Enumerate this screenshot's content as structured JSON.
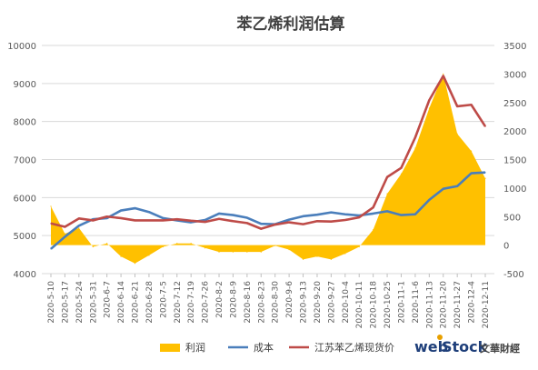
{
  "chart_data": {
    "type": "line",
    "title": "苯乙烯利润估算",
    "x": [
      "2020-5-10",
      "2020-5-17",
      "2020-5-24",
      "2020-5-31",
      "2020-6-7",
      "2020-6-14",
      "2020-6-21",
      "2020-6-28",
      "2020-7-5",
      "2020-7-12",
      "2020-7-19",
      "2020-7-26",
      "2020-8-2",
      "2020-8-9",
      "2020-8-16",
      "2020-8-23",
      "2020-8-30",
      "2020-9-6",
      "2020-9-13",
      "2020-9-20",
      "2020-9-27",
      "2020-10-4",
      "2020-10-11",
      "2020-10-18",
      "2020-10-25",
      "2020-11-1",
      "2020-11-6",
      "2020-11-13",
      "2020-11-20",
      "2020-11-27",
      "2020-12-4",
      "2020-12-11"
    ],
    "left_axis": {
      "ylim": [
        4000,
        10000
      ],
      "ticks": [
        4000,
        5000,
        6000,
        7000,
        8000,
        9000,
        10000
      ]
    },
    "right_axis": {
      "ylim": [
        -500,
        3500
      ],
      "ticks": [
        -500,
        0,
        500,
        1000,
        1500,
        2000,
        2500,
        3000,
        3500
      ]
    },
    "series": [
      {
        "name": "利润",
        "kind": "area",
        "axis": "right",
        "color": "#FFC000",
        "values": [
          680,
          200,
          300,
          -30,
          30,
          -200,
          -320,
          -180,
          -30,
          30,
          30,
          -50,
          -120,
          -120,
          -120,
          -120,
          -10,
          -80,
          -250,
          -200,
          -250,
          -150,
          -30,
          270,
          900,
          1250,
          1700,
          2400,
          3000,
          1950,
          1650,
          1170
        ]
      },
      {
        "name": "成本",
        "kind": "line",
        "axis": "left",
        "color": "#4A7EBB",
        "values": [
          4650,
          4970,
          5260,
          5430,
          5460,
          5660,
          5720,
          5620,
          5460,
          5400,
          5350,
          5410,
          5580,
          5540,
          5470,
          5310,
          5300,
          5420,
          5510,
          5550,
          5610,
          5560,
          5530,
          5580,
          5640,
          5540,
          5560,
          5940,
          6230,
          6300,
          6640,
          6660
        ]
      },
      {
        "name": "江苏苯乙烯现货价",
        "kind": "line",
        "axis": "left",
        "color": "#BE4B48",
        "values": [
          5320,
          5230,
          5450,
          5400,
          5500,
          5460,
          5400,
          5400,
          5400,
          5430,
          5390,
          5360,
          5440,
          5380,
          5330,
          5180,
          5290,
          5350,
          5300,
          5380,
          5370,
          5410,
          5480,
          5740,
          6540,
          6780,
          7580,
          8560,
          9200,
          8400,
          8440,
          7870
        ]
      }
    ],
    "grid": true,
    "legend_position": "bottom"
  },
  "logo": {
    "web": "web",
    "stock": "Stock",
    "cn": "文華財經"
  }
}
